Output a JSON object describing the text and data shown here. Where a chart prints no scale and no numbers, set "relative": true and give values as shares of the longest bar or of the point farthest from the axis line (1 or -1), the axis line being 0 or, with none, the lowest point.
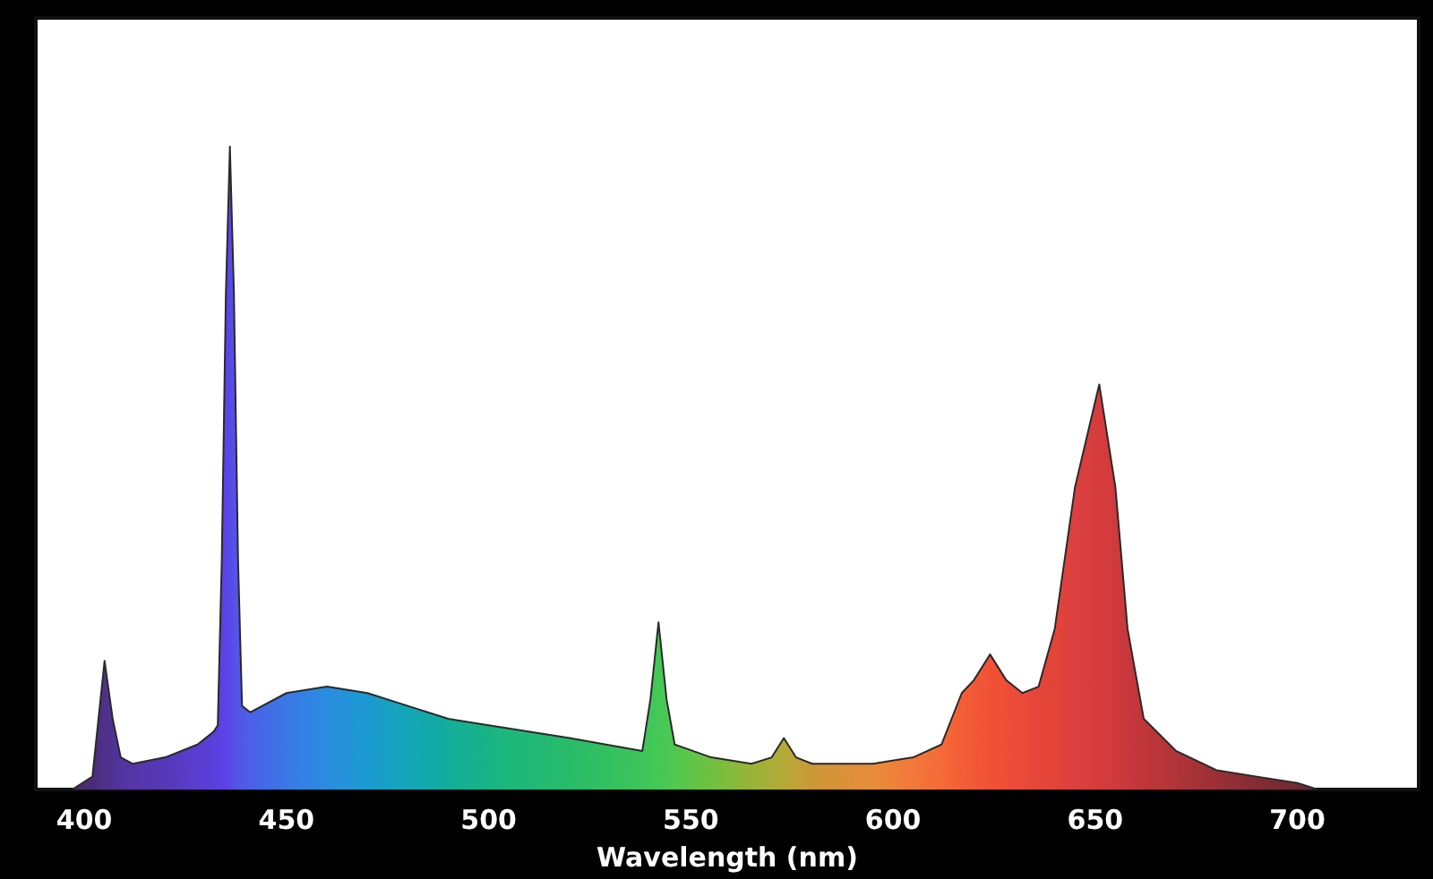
{
  "chart_data": {
    "type": "area",
    "xlabel": "Wavelength (nm)",
    "relative": true,
    "xlim": [
      388,
      730
    ],
    "xticks": [
      400,
      450,
      500,
      550,
      600,
      650,
      700
    ],
    "x": [
      397,
      402,
      404,
      405,
      407,
      409,
      412,
      420,
      428,
      432,
      433,
      434,
      435,
      436,
      437,
      438,
      439,
      441,
      450,
      460,
      470,
      480,
      490,
      500,
      520,
      538,
      540,
      542,
      544,
      546,
      555,
      565,
      570,
      573,
      576,
      580,
      595,
      605,
      612,
      617,
      620,
      624,
      628,
      632,
      636,
      640,
      645,
      651,
      655,
      658,
      662,
      670,
      680,
      690,
      700,
      705
    ],
    "values": [
      0,
      0.02,
      0.14,
      0.2,
      0.11,
      0.05,
      0.04,
      0.05,
      0.07,
      0.09,
      0.1,
      0.36,
      0.77,
      1,
      0.77,
      0.36,
      0.13,
      0.12,
      0.15,
      0.16,
      0.15,
      0.13,
      0.11,
      0.1,
      0.08,
      0.06,
      0.14,
      0.26,
      0.14,
      0.07,
      0.05,
      0.04,
      0.05,
      0.08,
      0.05,
      0.04,
      0.04,
      0.05,
      0.07,
      0.15,
      0.17,
      0.21,
      0.17,
      0.15,
      0.16,
      0.25,
      0.47,
      0.63,
      0.47,
      0.25,
      0.11,
      0.06,
      0.03,
      0.02,
      0.01,
      0
    ],
    "colors": [
      "#4a2a6a",
      "#4b2c78",
      "#4e2f85",
      "#50308a",
      "#50328f",
      "#5234a0",
      "#5337a8",
      "#5538b8",
      "#5a3ed0",
      "#5a40dc",
      "#5a40e0",
      "#5a42e4",
      "#5a44e6",
      "#5848e8",
      "#5650e8",
      "#5456e8",
      "#5058e8",
      "#4c60e8",
      "#3a78e6",
      "#2a8ce0",
      "#1c9ad0",
      "#14a6b8",
      "#14ad9c",
      "#18b484",
      "#28bc68",
      "#3ec45a",
      "#40c658",
      "#44c856",
      "#48c854",
      "#50c850",
      "#70c040",
      "#98b438",
      "#aaae38",
      "#b4aa38",
      "#c0a238",
      "#cc9838",
      "#e88c3a",
      "#f2783a",
      "#f46a38",
      "#f45e36",
      "#f25836",
      "#f05236",
      "#ee4e36",
      "#ea4a38",
      "#e64638",
      "#e24438",
      "#dc4040",
      "#d63c3c",
      "#d03a3c",
      "#c8383c",
      "#c0363a",
      "#b03438",
      "#9a3036",
      "#842c34",
      "#702a32",
      "#602830"
    ],
    "grid": false,
    "legend": false
  }
}
